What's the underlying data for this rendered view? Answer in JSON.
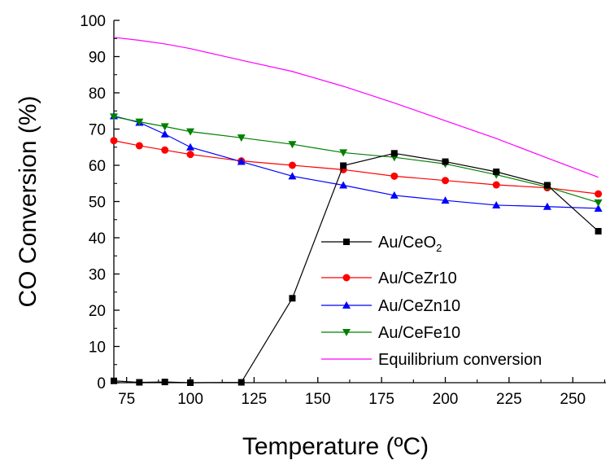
{
  "chart_data": {
    "type": "line",
    "xlabel": "Temperature (ºC)",
    "ylabel": "CO Conversion (%)",
    "xlim": [
      70,
      263
    ],
    "ylim": [
      0,
      100
    ],
    "xticks": [
      75,
      100,
      125,
      150,
      175,
      200,
      225,
      250
    ],
    "yticks": [
      0,
      10,
      20,
      30,
      40,
      50,
      60,
      70,
      80,
      90,
      100
    ],
    "legend_position": "right-center",
    "grid": false,
    "series": [
      {
        "name": "Au/CeO",
        "name_subscript": "2",
        "color": "#000000",
        "marker": "square",
        "x": [
          70,
          80,
          90,
          100,
          120,
          140,
          160,
          180,
          200,
          220,
          240,
          260
        ],
        "y": [
          0.5,
          0.1,
          0.2,
          0.0,
          0.1,
          23.3,
          59.9,
          63.3,
          61.0,
          58.2,
          54.5,
          41.8
        ]
      },
      {
        "name": "Au/CeZr10",
        "color": "#ff0000",
        "marker": "circle",
        "x": [
          70,
          80,
          90,
          100,
          120,
          140,
          160,
          180,
          200,
          220,
          240,
          260
        ],
        "y": [
          66.8,
          65.4,
          64.2,
          63.0,
          61.2,
          60.0,
          58.8,
          57.0,
          55.8,
          54.6,
          53.8,
          52.1
        ]
      },
      {
        "name": "Au/CeZn10",
        "color": "#0000ff",
        "marker": "triangle-up",
        "x": [
          70,
          80,
          90,
          100,
          120,
          140,
          160,
          180,
          200,
          220,
          240,
          260
        ],
        "y": [
          73.6,
          71.8,
          68.6,
          65.0,
          61.0,
          57.0,
          54.5,
          51.7,
          50.3,
          49.0,
          48.6,
          48.1
        ]
      },
      {
        "name": "Au/CeFe10",
        "color": "#008000",
        "marker": "triangle-down",
        "x": [
          70,
          80,
          90,
          100,
          120,
          140,
          160,
          180,
          200,
          220,
          240,
          260
        ],
        "y": [
          73.4,
          72.0,
          70.7,
          69.3,
          67.6,
          65.8,
          63.5,
          62.2,
          60.4,
          57.4,
          54.0,
          49.7
        ]
      },
      {
        "name": "Equilibrium conversion",
        "color": "#ff00ff",
        "marker": "none",
        "x": [
          70,
          80,
          90,
          100,
          120,
          140,
          160,
          180,
          200,
          220,
          240,
          260
        ],
        "y": [
          95.3,
          94.5,
          93.5,
          92.2,
          89.0,
          85.9,
          81.8,
          77.2,
          72.3,
          67.4,
          62.0,
          56.7
        ]
      }
    ]
  }
}
